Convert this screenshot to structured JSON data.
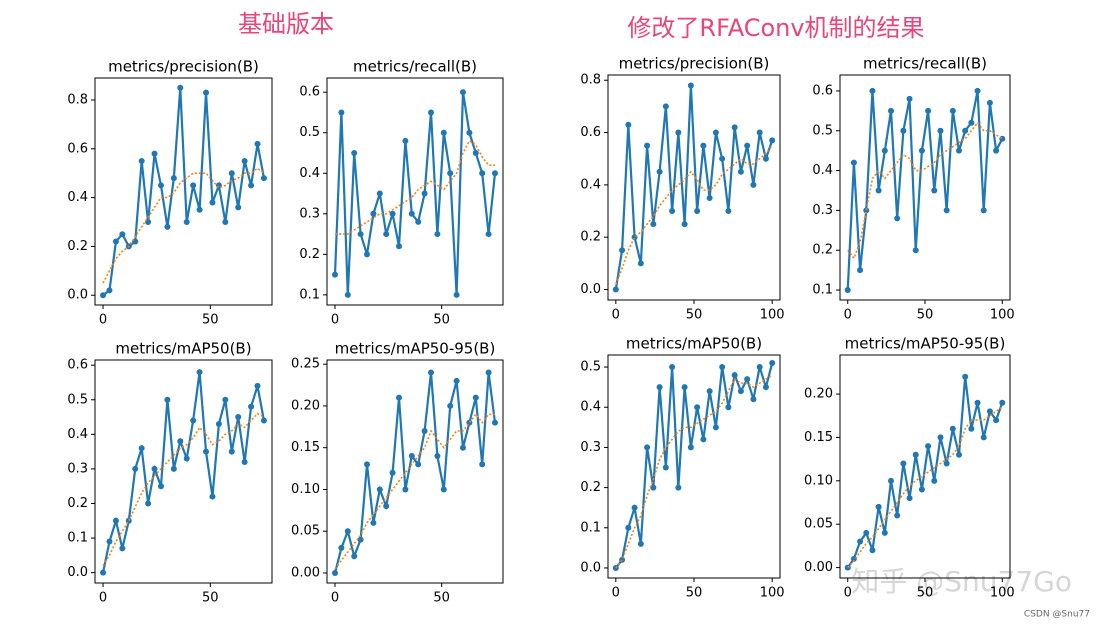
{
  "headings": [
    "基础版本",
    "修改了RFAConv机制的结果"
  ],
  "watermark": "知乎 @Snu77Go",
  "credit": "CSDN @Snu77",
  "chart_data": [
    {
      "type": "line",
      "title": "metrics/precision(B)",
      "x": [
        0,
        3,
        6,
        9,
        12,
        15,
        18,
        21,
        24,
        27,
        30,
        33,
        36,
        39,
        42,
        45,
        48,
        51,
        54,
        57,
        60,
        63,
        66,
        69,
        72,
        75
      ],
      "series": [
        {
          "color": "#1f77b4",
          "values": [
            0,
            0.02,
            0.22,
            0.25,
            0.2,
            0.22,
            0.55,
            0.3,
            0.58,
            0.45,
            0.28,
            0.48,
            0.85,
            0.3,
            0.45,
            0.35,
            0.83,
            0.38,
            0.45,
            0.3,
            0.5,
            0.36,
            0.55,
            0.45,
            0.62,
            0.48
          ]
        },
        {
          "color": "#ff7f0e",
          "linestyle": "dotted",
          "values": [
            0.05,
            0.1,
            0.15,
            0.18,
            0.2,
            0.24,
            0.28,
            0.32,
            0.36,
            0.4,
            0.4,
            0.42,
            0.46,
            0.48,
            0.5,
            0.5,
            0.5,
            0.47,
            0.44,
            0.45,
            0.47,
            0.48,
            0.5,
            0.5,
            0.52,
            0.5
          ]
        }
      ],
      "xlim": [
        -3.75,
        78.75
      ],
      "ylim": [
        -0.04,
        0.89
      ],
      "xticks": [
        0,
        50
      ],
      "yticks": [
        {
          "value": 0,
          "label": "0.0"
        },
        0.2,
        0.4,
        0.6,
        0.8
      ]
    },
    {
      "type": "line",
      "title": "metrics/recall(B)",
      "x": [
        0,
        3,
        6,
        9,
        12,
        15,
        18,
        21,
        24,
        27,
        30,
        33,
        36,
        39,
        42,
        45,
        48,
        51,
        54,
        57,
        60,
        63,
        66,
        69,
        72,
        75
      ],
      "series": [
        {
          "color": "#1f77b4",
          "values": [
            0.15,
            0.55,
            0.1,
            0.45,
            0.25,
            0.2,
            0.3,
            0.35,
            0.25,
            0.3,
            0.22,
            0.48,
            0.3,
            0.28,
            0.35,
            0.55,
            0.25,
            0.5,
            0.4,
            0.1,
            0.6,
            0.5,
            0.45,
            0.4,
            0.25,
            0.4
          ]
        },
        {
          "color": "#ff7f0e",
          "linestyle": "dotted",
          "values": [
            0.25,
            0.25,
            0.25,
            0.26,
            0.27,
            0.28,
            0.29,
            0.3,
            0.3,
            0.31,
            0.32,
            0.33,
            0.34,
            0.36,
            0.37,
            0.38,
            0.37,
            0.36,
            0.38,
            0.4,
            0.45,
            0.48,
            0.47,
            0.44,
            0.42,
            0.42
          ]
        }
      ],
      "xlim": [
        -3.75,
        78.75
      ],
      "ylim": [
        0.075,
        0.635
      ],
      "xticks": [
        0,
        50
      ],
      "yticks": [
        0.1,
        0.2,
        0.3,
        0.4,
        0.5,
        0.6
      ]
    },
    {
      "type": "line",
      "title": "metrics/mAP50(B)",
      "x": [
        0,
        3,
        6,
        9,
        12,
        15,
        18,
        21,
        24,
        27,
        30,
        33,
        36,
        39,
        42,
        45,
        48,
        51,
        54,
        57,
        60,
        63,
        66,
        69,
        72,
        75
      ],
      "series": [
        {
          "color": "#1f77b4",
          "values": [
            0,
            0.09,
            0.15,
            0.07,
            0.15,
            0.3,
            0.36,
            0.2,
            0.3,
            0.25,
            0.5,
            0.3,
            0.38,
            0.33,
            0.44,
            0.58,
            0.35,
            0.22,
            0.43,
            0.5,
            0.35,
            0.45,
            0.32,
            0.48,
            0.54,
            0.44
          ]
        },
        {
          "color": "#ff7f0e",
          "linestyle": "dotted",
          "values": [
            0.02,
            0.05,
            0.09,
            0.12,
            0.15,
            0.19,
            0.23,
            0.26,
            0.28,
            0.3,
            0.32,
            0.34,
            0.36,
            0.37,
            0.39,
            0.42,
            0.4,
            0.37,
            0.38,
            0.4,
            0.41,
            0.43,
            0.42,
            0.44,
            0.46,
            0.45
          ]
        }
      ],
      "xlim": [
        -3.75,
        78.75
      ],
      "ylim": [
        -0.03,
        0.615
      ],
      "xticks": [
        0,
        50
      ],
      "yticks": [
        {
          "value": 0,
          "label": "0.0"
        },
        0.1,
        0.2,
        0.3,
        0.4,
        0.5,
        0.6
      ]
    },
    {
      "type": "line",
      "title": "metrics/mAP50-95(B)",
      "x": [
        0,
        3,
        6,
        9,
        12,
        15,
        18,
        21,
        24,
        27,
        30,
        33,
        36,
        39,
        42,
        45,
        48,
        51,
        54,
        57,
        60,
        63,
        66,
        69,
        72,
        75
      ],
      "series": [
        {
          "color": "#1f77b4",
          "values": [
            0,
            0.03,
            0.05,
            0.02,
            0.04,
            0.13,
            0.06,
            0.1,
            0.08,
            0.12,
            0.21,
            0.1,
            0.14,
            0.13,
            0.17,
            0.24,
            0.14,
            0.1,
            0.2,
            0.23,
            0.15,
            0.18,
            0.21,
            0.13,
            0.24,
            0.18
          ]
        },
        {
          "color": "#ff7f0e",
          "linestyle": "dotted",
          "values": [
            0.005,
            0.015,
            0.025,
            0.035,
            0.045,
            0.06,
            0.07,
            0.08,
            0.09,
            0.1,
            0.11,
            0.12,
            0.13,
            0.14,
            0.15,
            0.17,
            0.16,
            0.15,
            0.16,
            0.17,
            0.17,
            0.18,
            0.19,
            0.18,
            0.19,
            0.19
          ]
        }
      ],
      "xlim": [
        -3.75,
        78.75
      ],
      "ylim": [
        -0.012,
        0.255
      ],
      "xticks": [
        0,
        50
      ],
      "yticks": [
        {
          "value": 0,
          "label": "0.00"
        },
        0.05,
        {
          "value": 0.1,
          "label": "0.10"
        },
        0.15,
        {
          "value": 0.2,
          "label": "0.20"
        },
        0.25
      ]
    },
    {
      "type": "line",
      "title": "metrics/precision(B)",
      "x": [
        0,
        4,
        8,
        12,
        16,
        20,
        24,
        28,
        32,
        36,
        40,
        44,
        48,
        52,
        56,
        60,
        64,
        68,
        72,
        76,
        80,
        84,
        88,
        92,
        96,
        100
      ],
      "series": [
        {
          "color": "#1f77b4",
          "values": [
            0,
            0.15,
            0.63,
            0.2,
            0.1,
            0.55,
            0.25,
            0.45,
            0.7,
            0.3,
            0.6,
            0.25,
            0.78,
            0.3,
            0.55,
            0.35,
            0.6,
            0.5,
            0.3,
            0.62,
            0.45,
            0.55,
            0.4,
            0.6,
            0.5,
            0.57
          ]
        },
        {
          "color": "#ff7f0e",
          "linestyle": "dotted",
          "values": [
            0.02,
            0.08,
            0.15,
            0.2,
            0.22,
            0.25,
            0.28,
            0.32,
            0.35,
            0.38,
            0.4,
            0.42,
            0.45,
            0.42,
            0.38,
            0.38,
            0.4,
            0.44,
            0.46,
            0.48,
            0.5,
            0.48,
            0.48,
            0.5,
            0.52,
            0.55
          ]
        }
      ],
      "xlim": [
        -5,
        105
      ],
      "ylim": [
        -0.04,
        0.82
      ],
      "xticks": [
        0,
        50,
        100
      ],
      "yticks": [
        {
          "value": 0,
          "label": "0.0"
        },
        0.2,
        0.4,
        0.6,
        0.8
      ]
    },
    {
      "type": "line",
      "title": "metrics/recall(B)",
      "x": [
        0,
        4,
        8,
        12,
        16,
        20,
        24,
        28,
        32,
        36,
        40,
        44,
        48,
        52,
        56,
        60,
        64,
        68,
        72,
        76,
        80,
        84,
        88,
        92,
        96,
        100
      ],
      "series": [
        {
          "color": "#1f77b4",
          "values": [
            0.1,
            0.42,
            0.15,
            0.3,
            0.6,
            0.35,
            0.45,
            0.55,
            0.28,
            0.5,
            0.58,
            0.2,
            0.45,
            0.55,
            0.35,
            0.5,
            0.3,
            0.55,
            0.45,
            0.5,
            0.52,
            0.6,
            0.3,
            0.57,
            0.45,
            0.48
          ]
        },
        {
          "color": "#ff7f0e",
          "linestyle": "dotted",
          "values": [
            0.2,
            0.18,
            0.22,
            0.3,
            0.38,
            0.4,
            0.38,
            0.4,
            0.42,
            0.44,
            0.43,
            0.4,
            0.4,
            0.41,
            0.42,
            0.44,
            0.45,
            0.46,
            0.47,
            0.48,
            0.5,
            0.52,
            0.5,
            0.5,
            0.49,
            0.48
          ]
        }
      ],
      "xlim": [
        -5,
        105
      ],
      "ylim": [
        0.075,
        0.64
      ],
      "xticks": [
        0,
        50,
        100
      ],
      "yticks": [
        0.1,
        0.2,
        0.3,
        0.4,
        0.5,
        0.6
      ]
    },
    {
      "type": "line",
      "title": "metrics/mAP50(B)",
      "x": [
        0,
        4,
        8,
        12,
        16,
        20,
        24,
        28,
        32,
        36,
        40,
        44,
        48,
        52,
        56,
        60,
        64,
        68,
        72,
        76,
        80,
        84,
        88,
        92,
        96,
        100
      ],
      "series": [
        {
          "color": "#1f77b4",
          "values": [
            0,
            0.02,
            0.1,
            0.15,
            0.06,
            0.3,
            0.2,
            0.45,
            0.25,
            0.5,
            0.2,
            0.45,
            0.3,
            0.4,
            0.32,
            0.44,
            0.35,
            0.5,
            0.4,
            0.48,
            0.44,
            0.47,
            0.42,
            0.5,
            0.45,
            0.51
          ]
        },
        {
          "color": "#ff7f0e",
          "linestyle": "dotted",
          "values": [
            0,
            0.02,
            0.06,
            0.1,
            0.13,
            0.18,
            0.22,
            0.27,
            0.3,
            0.32,
            0.34,
            0.35,
            0.35,
            0.36,
            0.37,
            0.38,
            0.39,
            0.41,
            0.44,
            0.47,
            0.46,
            0.46,
            0.45,
            0.46,
            0.47,
            0.48
          ]
        }
      ],
      "xlim": [
        -5,
        105
      ],
      "ylim": [
        -0.025,
        0.53
      ],
      "xticks": [
        0,
        50,
        100
      ],
      "yticks": [
        {
          "value": 0,
          "label": "0.0"
        },
        0.1,
        0.2,
        0.3,
        0.4,
        0.5
      ]
    },
    {
      "type": "line",
      "title": "metrics/mAP50-95(B)",
      "x": [
        0,
        4,
        8,
        12,
        16,
        20,
        24,
        28,
        32,
        36,
        40,
        44,
        48,
        52,
        56,
        60,
        64,
        68,
        72,
        76,
        80,
        84,
        88,
        92,
        96,
        100
      ],
      "series": [
        {
          "color": "#1f77b4",
          "values": [
            0,
            0.01,
            0.03,
            0.04,
            0.02,
            0.07,
            0.04,
            0.1,
            0.06,
            0.12,
            0.08,
            0.13,
            0.09,
            0.14,
            0.1,
            0.15,
            0.12,
            0.16,
            0.13,
            0.22,
            0.16,
            0.19,
            0.15,
            0.18,
            0.17,
            0.19
          ]
        },
        {
          "color": "#ff7f0e",
          "linestyle": "dotted",
          "values": [
            0,
            0.008,
            0.018,
            0.028,
            0.035,
            0.045,
            0.055,
            0.065,
            0.075,
            0.085,
            0.095,
            0.1,
            0.105,
            0.11,
            0.115,
            0.12,
            0.125,
            0.13,
            0.14,
            0.16,
            0.17,
            0.17,
            0.17,
            0.175,
            0.18,
            0.185
          ]
        }
      ],
      "xlim": [
        -5,
        105
      ],
      "ylim": [
        -0.012,
        0.245
      ],
      "xticks": [
        0,
        50,
        100
      ],
      "yticks": [
        {
          "value": 0,
          "label": "0.00"
        },
        0.05,
        {
          "value": 0.1,
          "label": "0.10"
        },
        0.15,
        {
          "value": 0.2,
          "label": "0.20"
        }
      ]
    }
  ]
}
